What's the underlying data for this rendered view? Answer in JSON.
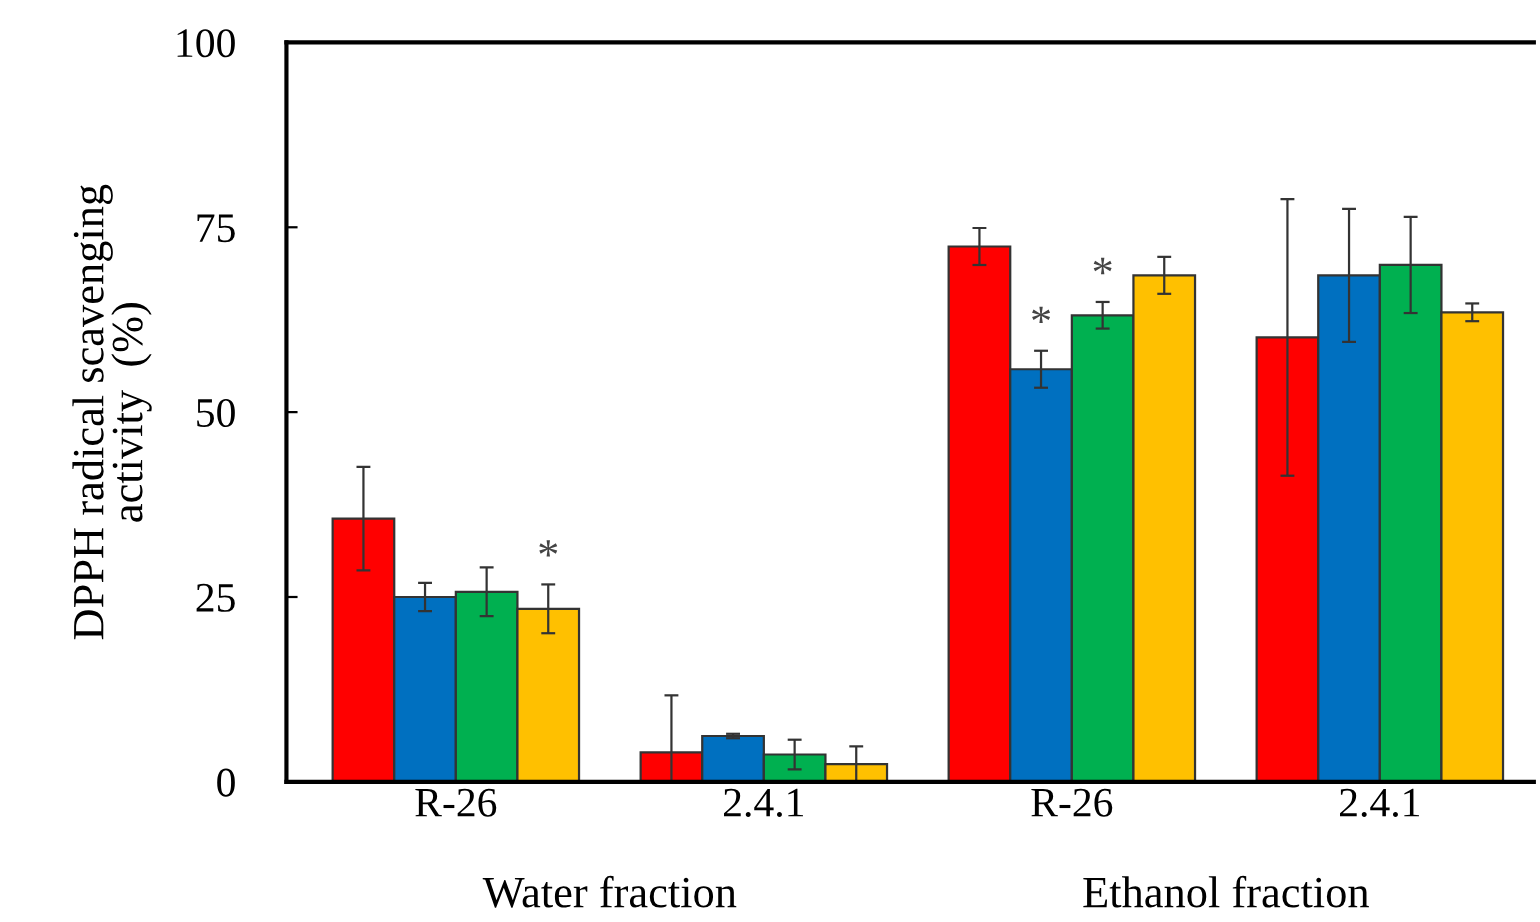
{
  "chart_data": {
    "type": "bar",
    "ylabel": "DPPH radical scavenging\nactivity  (%)",
    "categories": [
      "R-26",
      "2.4.1",
      "R-26",
      "2.4.1"
    ],
    "annotations": [
      "Water fraction",
      "Ethanol fraction"
    ],
    "ylim": [
      0,
      100
    ],
    "yticks": [
      0,
      25,
      50,
      75,
      100
    ],
    "grid": false,
    "legend": false,
    "series": [
      {
        "color": "#ff0000",
        "values": [
          35.6,
          4.0,
          72.4,
          60.1
        ],
        "errors": [
          7.0,
          [
            0,
            11.7
          ],
          2.5,
          18.7
        ]
      },
      {
        "color": "#0070c0",
        "values": [
          25.0,
          6.2,
          55.8,
          68.5
        ],
        "errors": [
          1.9,
          0.3,
          2.5,
          9.0
        ],
        "value_labels": [
          null,
          null,
          "*",
          null
        ]
      },
      {
        "color": "#00b050",
        "values": [
          25.7,
          3.7,
          63.1,
          69.9
        ],
        "errors": [
          3.3,
          2.0,
          1.8,
          6.5
        ],
        "value_labels": [
          null,
          null,
          "*",
          null
        ]
      },
      {
        "color": "#ffc000",
        "values": [
          23.4,
          2.4,
          68.5,
          63.5
        ],
        "errors": [
          3.3,
          2.4,
          2.5,
          1.2
        ],
        "value_labels": [
          "*",
          null,
          null,
          null
        ]
      }
    ]
  }
}
